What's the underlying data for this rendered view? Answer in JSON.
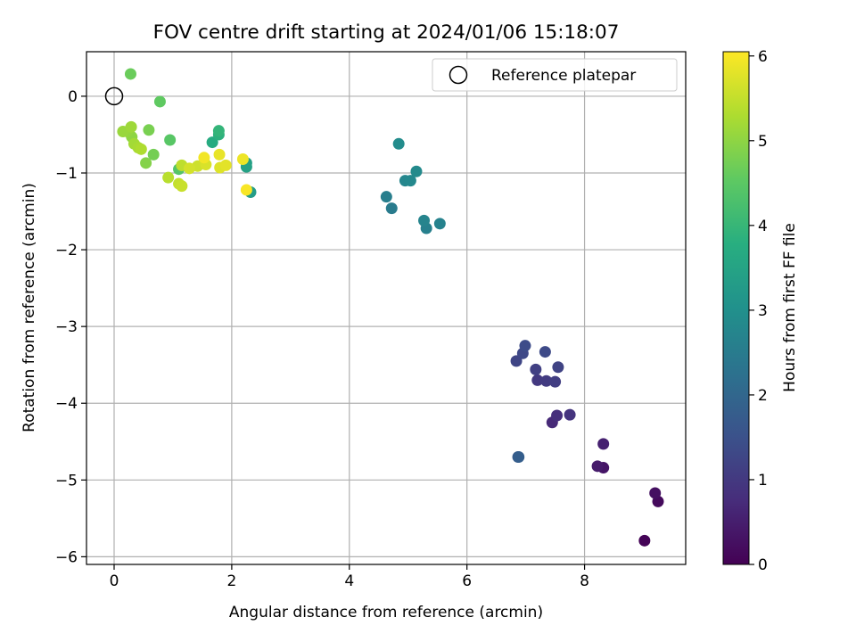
{
  "chart_data": {
    "type": "scatter",
    "title": "FOV centre drift starting at 2024/01/06 15:18:07",
    "xlabel": "Angular distance from reference (arcmin)",
    "ylabel": "Rotation from reference (arcmin)",
    "xlim": [
      -0.47,
      9.72
    ],
    "ylim": [
      -6.1,
      0.58
    ],
    "xticks": [
      0,
      2,
      4,
      6,
      8
    ],
    "yticks": [
      0,
      -1,
      -2,
      -3,
      -4,
      -5,
      -6
    ],
    "xtick_labels": [
      "0",
      "2",
      "4",
      "6",
      "8"
    ],
    "ytick_labels": [
      "0",
      "−1",
      "−2",
      "−3",
      "−4",
      "−5",
      "−6"
    ],
    "grid": true,
    "legend": {
      "label": "Reference platepar",
      "placement": "top-right"
    },
    "reference_point": {
      "x": 0,
      "y": 0
    },
    "colorbar": {
      "label": "Hours from first FF file",
      "colormap": "viridis",
      "range": [
        0,
        6.05
      ],
      "ticks": [
        0,
        1,
        2,
        3,
        4,
        5,
        6
      ],
      "tick_labels": [
        "0",
        "1",
        "2",
        "3",
        "4",
        "5",
        "6"
      ]
    },
    "points": [
      {
        "x": 9.02,
        "y": -5.79,
        "t": 0.05
      },
      {
        "x": 9.25,
        "y": -5.28,
        "t": 0.15
      },
      {
        "x": 9.2,
        "y": -5.17,
        "t": 0.25
      },
      {
        "x": 8.32,
        "y": -4.84,
        "t": 0.35
      },
      {
        "x": 8.22,
        "y": -4.82,
        "t": 0.45
      },
      {
        "x": 8.32,
        "y": -4.53,
        "t": 0.55
      },
      {
        "x": 7.45,
        "y": -4.25,
        "t": 0.7
      },
      {
        "x": 7.53,
        "y": -4.16,
        "t": 0.8
      },
      {
        "x": 7.75,
        "y": -4.15,
        "t": 0.9
      },
      {
        "x": 7.2,
        "y": -3.7,
        "t": 1.0
      },
      {
        "x": 7.35,
        "y": -3.71,
        "t": 1.05
      },
      {
        "x": 7.5,
        "y": -3.72,
        "t": 1.1
      },
      {
        "x": 7.17,
        "y": -3.56,
        "t": 1.15
      },
      {
        "x": 7.55,
        "y": -3.53,
        "t": 1.2
      },
      {
        "x": 6.84,
        "y": -3.45,
        "t": 1.25
      },
      {
        "x": 6.95,
        "y": -3.35,
        "t": 1.3
      },
      {
        "x": 7.33,
        "y": -3.33,
        "t": 1.35
      },
      {
        "x": 6.99,
        "y": -3.25,
        "t": 1.4
      },
      {
        "x": 6.87,
        "y": -4.7,
        "t": 1.7
      },
      {
        "x": 6.88,
        "y": -4.7,
        "t": 1.8
      },
      {
        "x": 4.72,
        "y": -1.46,
        "t": 2.5
      },
      {
        "x": 4.63,
        "y": -1.31,
        "t": 2.55
      },
      {
        "x": 5.31,
        "y": -1.72,
        "t": 2.6
      },
      {
        "x": 5.54,
        "y": -1.66,
        "t": 2.65
      },
      {
        "x": 5.27,
        "y": -1.62,
        "t": 2.7
      },
      {
        "x": 4.95,
        "y": -1.1,
        "t": 2.75
      },
      {
        "x": 5.04,
        "y": -1.1,
        "t": 2.8
      },
      {
        "x": 5.14,
        "y": -0.98,
        "t": 2.85
      },
      {
        "x": 4.84,
        "y": -0.62,
        "t": 2.9
      },
      {
        "x": 2.32,
        "y": -1.25,
        "t": 3.3
      },
      {
        "x": 2.25,
        "y": -0.87,
        "t": 3.4
      },
      {
        "x": 2.25,
        "y": -0.92,
        "t": 3.45
      },
      {
        "x": 1.67,
        "y": -0.6,
        "t": 3.7
      },
      {
        "x": 1.78,
        "y": -0.5,
        "t": 3.85
      },
      {
        "x": 1.78,
        "y": -0.45,
        "t": 3.95
      },
      {
        "x": 1.1,
        "y": -0.95,
        "t": 4.4
      },
      {
        "x": 0.95,
        "y": -0.57,
        "t": 4.45
      },
      {
        "x": 0.78,
        "y": -0.07,
        "t": 4.55
      },
      {
        "x": 0.28,
        "y": 0.29,
        "t": 4.65
      },
      {
        "x": 0.67,
        "y": -0.76,
        "t": 4.75
      },
      {
        "x": 0.59,
        "y": -0.44,
        "t": 4.8
      },
      {
        "x": 0.54,
        "y": -0.87,
        "t": 4.9
      },
      {
        "x": 0.3,
        "y": -0.53,
        "t": 5.0
      },
      {
        "x": 0.22,
        "y": -0.46,
        "t": 5.05
      },
      {
        "x": 0.15,
        "y": -0.46,
        "t": 5.1
      },
      {
        "x": 0.29,
        "y": -0.4,
        "t": 5.15
      },
      {
        "x": 0.34,
        "y": -0.62,
        "t": 5.2
      },
      {
        "x": 0.41,
        "y": -0.67,
        "t": 5.25
      },
      {
        "x": 0.46,
        "y": -0.69,
        "t": 5.3
      },
      {
        "x": 0.92,
        "y": -1.06,
        "t": 5.4
      },
      {
        "x": 1.15,
        "y": -0.9,
        "t": 5.45
      },
      {
        "x": 1.1,
        "y": -1.14,
        "t": 5.5
      },
      {
        "x": 1.15,
        "y": -1.17,
        "t": 5.55
      },
      {
        "x": 1.42,
        "y": -0.91,
        "t": 5.6
      },
      {
        "x": 1.28,
        "y": -0.94,
        "t": 5.65
      },
      {
        "x": 1.56,
        "y": -0.89,
        "t": 5.7
      },
      {
        "x": 1.8,
        "y": -0.93,
        "t": 5.75
      },
      {
        "x": 1.9,
        "y": -0.9,
        "t": 5.8
      },
      {
        "x": 1.79,
        "y": -0.76,
        "t": 5.85
      },
      {
        "x": 2.19,
        "y": -0.82,
        "t": 5.9
      },
      {
        "x": 1.53,
        "y": -0.8,
        "t": 5.95
      },
      {
        "x": 2.25,
        "y": -1.22,
        "t": 6.0
      }
    ]
  }
}
